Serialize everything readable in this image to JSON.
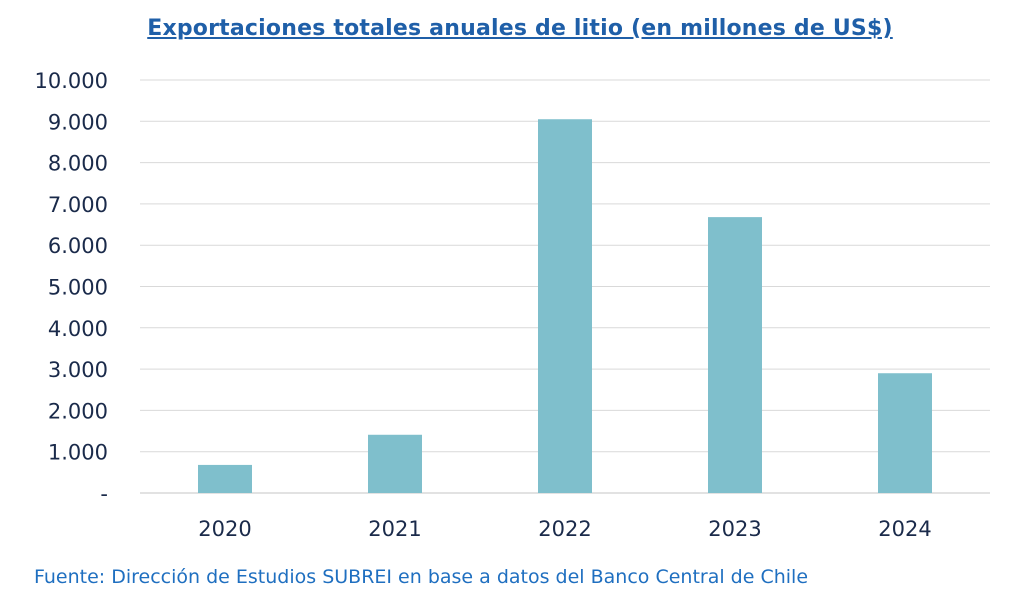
{
  "chart_data": {
    "type": "bar",
    "title": "Exportaciones totales anuales de litio (en millones de US$)",
    "categories": [
      "2020",
      "2021",
      "2022",
      "2023",
      "2024"
    ],
    "values": [
      680,
      1410,
      9050,
      6680,
      2900
    ],
    "ylim": [
      0,
      10000
    ],
    "y_ticks": [
      0,
      1000,
      2000,
      3000,
      4000,
      5000,
      6000,
      7000,
      8000,
      9000,
      10000
    ],
    "y_tick_labels": [
      "-",
      "1.000",
      "2.000",
      "3.000",
      "4.000",
      "5.000",
      "6.000",
      "7.000",
      "8.000",
      "9.000",
      "10.000"
    ],
    "xlabel": "",
    "ylabel": "",
    "grid": true,
    "bar_color": "#7fbfcc",
    "grid_color": "#d9d9d9"
  },
  "source_note": "Fuente: Dirección de Estudios SUBREI en base a datos del Banco Central de Chile"
}
